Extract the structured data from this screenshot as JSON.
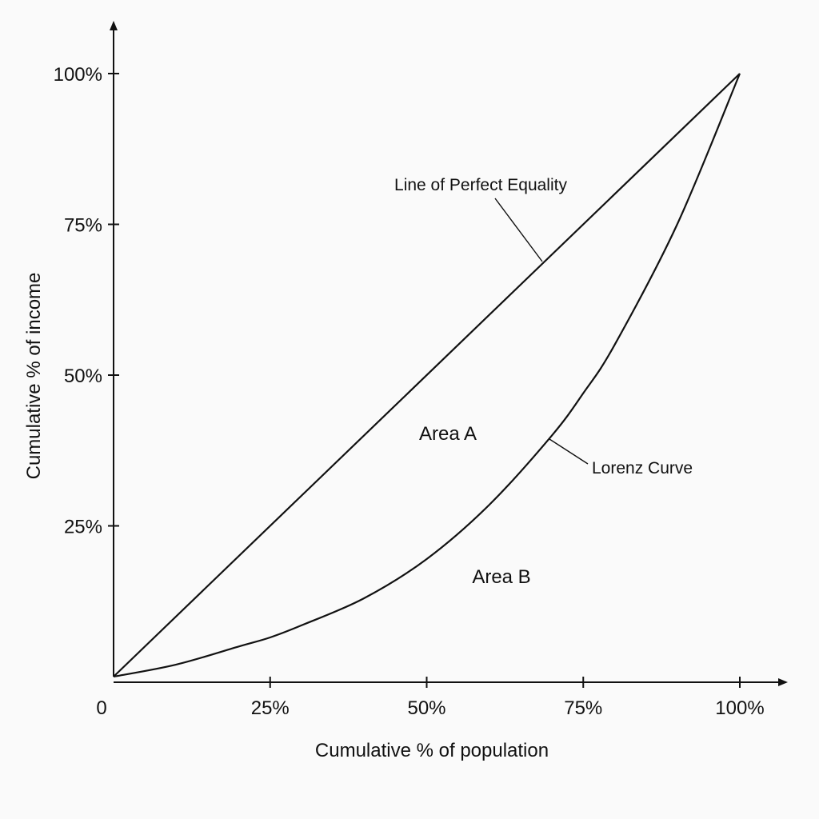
{
  "chart_data": {
    "type": "line",
    "title": "",
    "xlabel": "Cumulative % of population",
    "ylabel": "Cumulative % of income",
    "xlim": [
      0,
      100
    ],
    "ylim": [
      0,
      100
    ],
    "origin_label": "0",
    "x_ticks": [
      {
        "value": 25,
        "label": "25%"
      },
      {
        "value": 50,
        "label": "50%"
      },
      {
        "value": 75,
        "label": "75%"
      },
      {
        "value": 100,
        "label": "100%"
      }
    ],
    "y_ticks": [
      {
        "value": 25,
        "label": "25%"
      },
      {
        "value": 50,
        "label": "50%"
      },
      {
        "value": 75,
        "label": "75%"
      },
      {
        "value": 100,
        "label": "100%"
      }
    ],
    "grid": false,
    "series": [
      {
        "name": "Line of Perfect Equality",
        "x": [
          0,
          100
        ],
        "y": [
          0,
          100
        ]
      },
      {
        "name": "Lorenz Curve",
        "x": [
          0,
          10,
          20,
          25,
          30,
          40,
          50,
          60,
          70,
          75,
          80,
          90,
          100
        ],
        "y": [
          0,
          2,
          5,
          6.5,
          8.5,
          13,
          19.5,
          28.5,
          40,
          47,
          55,
          75,
          100
        ]
      }
    ],
    "annotations": [
      {
        "text": "Line of Perfect Equality",
        "target_series": 0
      },
      {
        "text": "Lorenz Curve",
        "target_series": 1
      }
    ],
    "regions": [
      {
        "label": "Area A"
      },
      {
        "label": "Area B"
      }
    ]
  }
}
